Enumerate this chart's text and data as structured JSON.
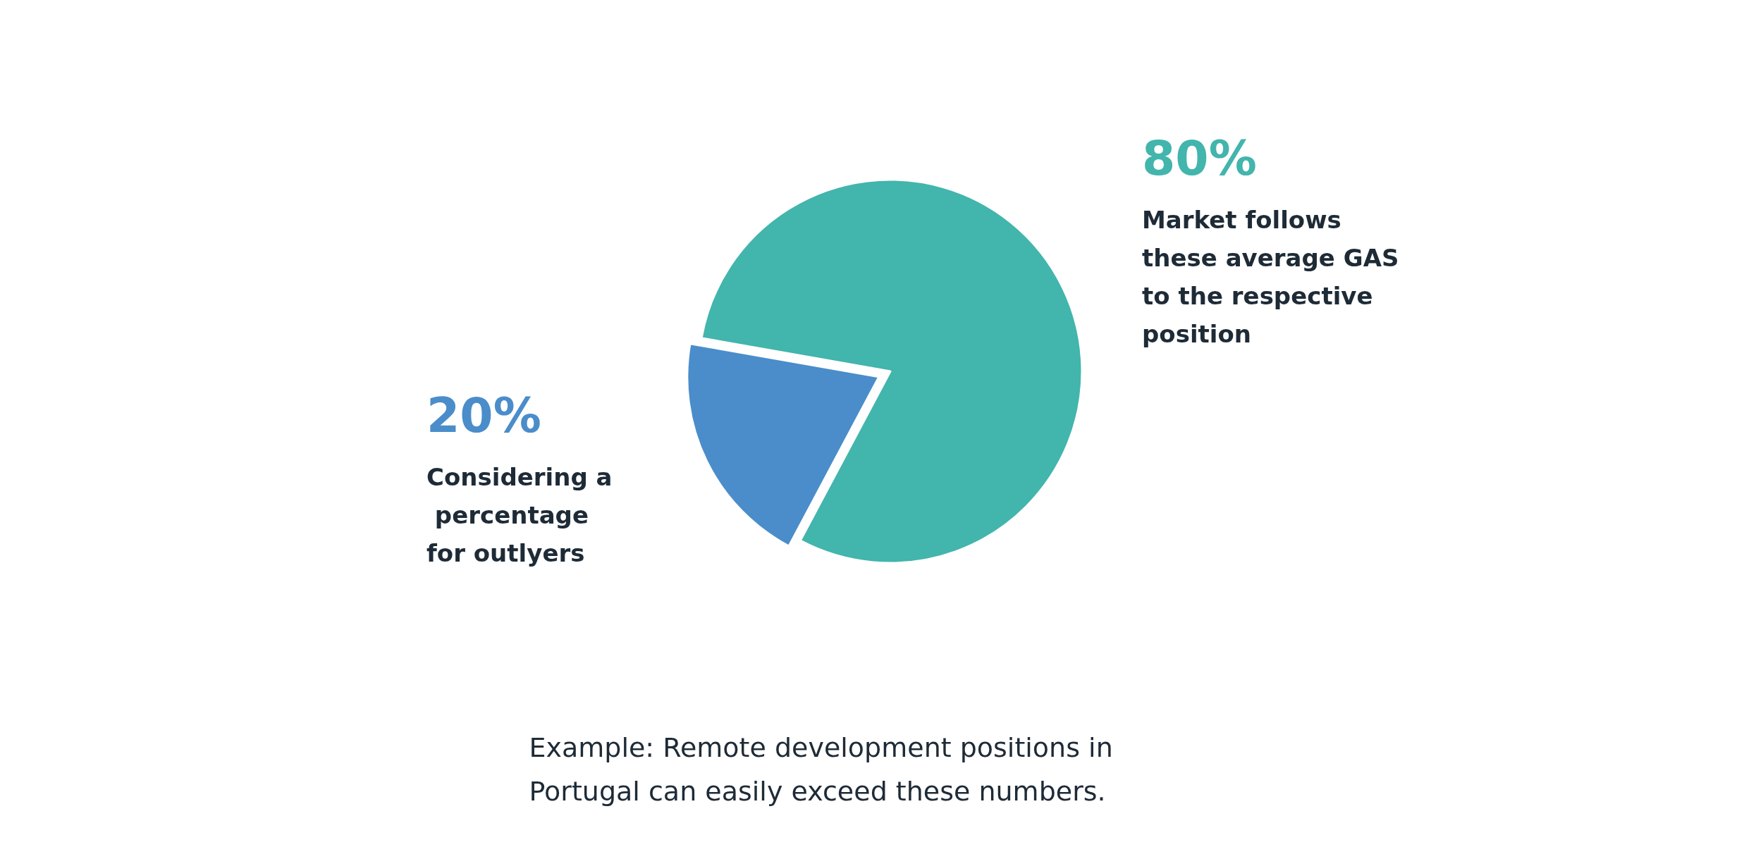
{
  "chart_data": {
    "type": "pie",
    "categories": [
      "Market follows these average GAS to the respective position",
      "Considering a percentage for outlyers"
    ],
    "values": [
      80,
      20
    ],
    "colors": [
      "#42b5ad",
      "#4a8dca"
    ],
    "value_labels": [
      "80%",
      "20%"
    ],
    "legend": false,
    "annotations": [
      "Example: Remote development positions in Portugal can easily exceed these numbers."
    ]
  }
}
